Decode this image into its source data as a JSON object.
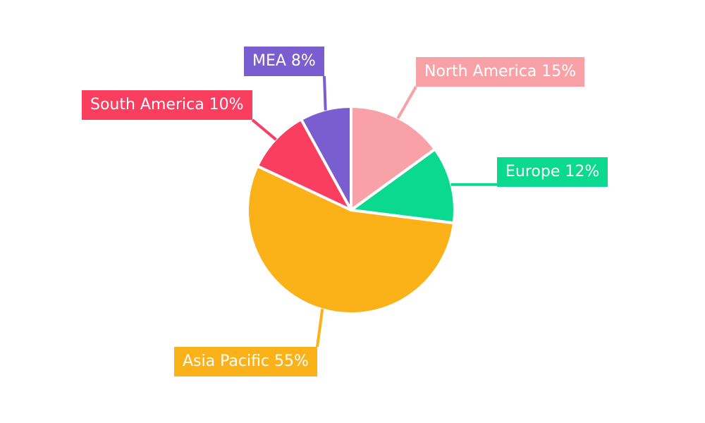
{
  "chart_data": {
    "type": "pie",
    "title": "",
    "value_unit": "%",
    "total": 100,
    "start_angle_deg": 0,
    "direction": "clockwise",
    "background_color": "#FFFFFF",
    "label_style": "callout-boxes-with-leader-lines",
    "label_text_color": "#FFFFFF",
    "slices": [
      {
        "id": "north-america",
        "label": "North America",
        "value": 15,
        "display": "North America 15%",
        "color": "#F8A1A7"
      },
      {
        "id": "europe",
        "label": "Europe",
        "value": 12,
        "display": "Europe 12%",
        "color": "#0BD98F"
      },
      {
        "id": "asia-pacific",
        "label": "Asia Pacific",
        "value": 55,
        "display": "Asia Pacific 55%",
        "color": "#FBB118"
      },
      {
        "id": "south-america",
        "label": "South America",
        "value": 10,
        "display": "South America 10%",
        "color": "#FA3E5F"
      },
      {
        "id": "mea",
        "label": "MEA",
        "value": 8,
        "display": "MEA 8%",
        "color": "#7A5ECF"
      }
    ]
  }
}
